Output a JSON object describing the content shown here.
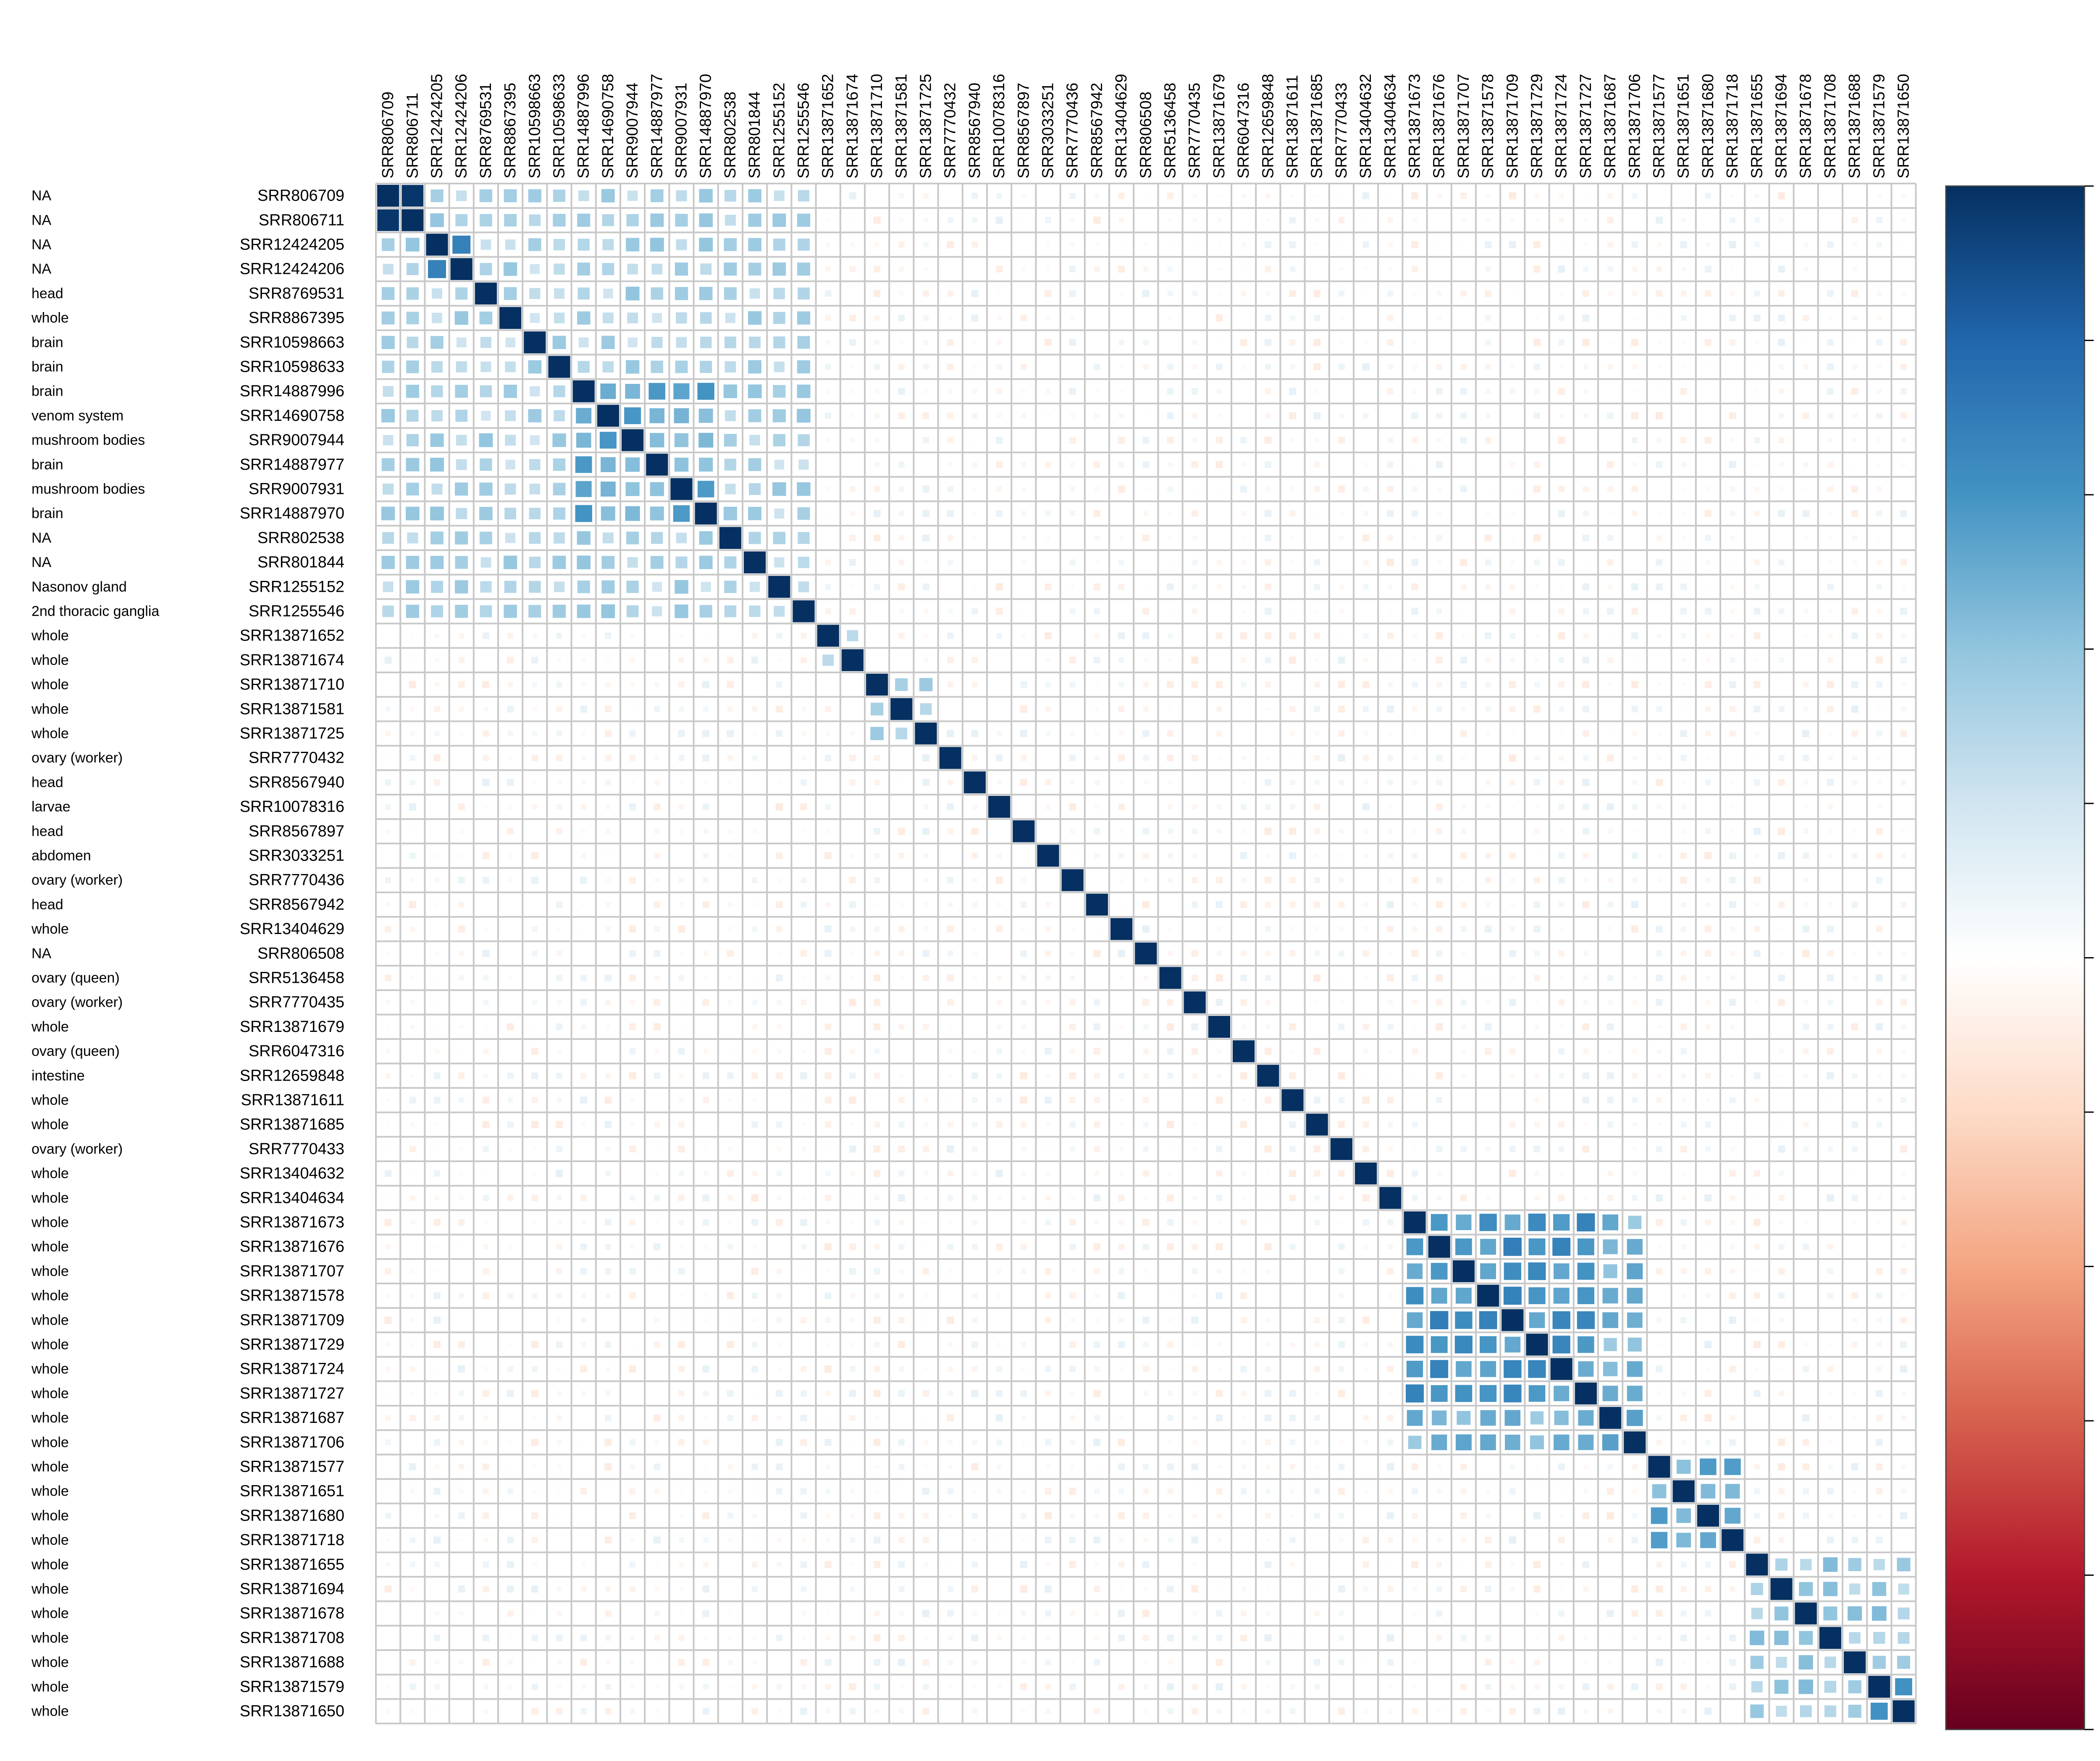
{
  "chart_data": {
    "type": "heatmap",
    "subtype": "correlation-matrix (corrplot, method=square)",
    "title": "",
    "xlabel": "",
    "ylabel": "",
    "samples": [
      "SRR806709",
      "SRR806711",
      "SRR12424205",
      "SRR12424206",
      "SRR8769531",
      "SRR8867395",
      "SRR10598663",
      "SRR10598633",
      "SRR14887996",
      "SRR14690758",
      "SRR9007944",
      "SRR14887977",
      "SRR9007931",
      "SRR14887970",
      "SRR802538",
      "SRR801844",
      "SRR1255152",
      "SRR1255546",
      "SRR13871652",
      "SRR13871674",
      "SRR13871710",
      "SRR13871581",
      "SRR13871725",
      "SRR7770432",
      "SRR8567940",
      "SRR10078316",
      "SRR8567897",
      "SRR3033251",
      "SRR7770436",
      "SRR8567942",
      "SRR13404629",
      "SRR806508",
      "SRR5136458",
      "SRR7770435",
      "SRR13871679",
      "SRR6047316",
      "SRR12659848",
      "SRR13871611",
      "SRR13871685",
      "SRR7770433",
      "SRR13404632",
      "SRR13404634",
      "SRR13871673",
      "SRR13871676",
      "SRR13871707",
      "SRR13871578",
      "SRR13871709",
      "SRR13871729",
      "SRR13871724",
      "SRR13871727",
      "SRR13871687",
      "SRR13871706",
      "SRR13871577",
      "SRR13871651",
      "SRR13871680",
      "SRR13871718",
      "SRR13871655",
      "SRR13871694",
      "SRR13871678",
      "SRR13871708",
      "SRR13871688",
      "SRR13871579",
      "SRR13871650"
    ],
    "tissues": [
      "NA",
      "NA",
      "NA",
      "NA",
      "head",
      "whole",
      "brain",
      "brain",
      "brain",
      "venom system",
      "mushroom bodies",
      "brain",
      "mushroom bodies",
      "brain",
      "NA",
      "NA",
      "Nasonov gland",
      "2nd thoracic ganglia",
      "whole",
      "whole",
      "whole",
      "whole",
      "whole",
      "ovary (worker)",
      "head",
      "larvae",
      "head",
      "abdomen",
      "ovary (worker)",
      "head",
      "whole",
      "NA",
      "ovary (queen)",
      "ovary (worker)",
      "whole",
      "ovary (queen)",
      "intestine",
      "whole",
      "whole",
      "ovary (worker)",
      "whole",
      "whole",
      "whole",
      "whole",
      "whole",
      "whole",
      "whole",
      "whole",
      "whole",
      "whole",
      "whole",
      "whole",
      "whole",
      "whole",
      "whole",
      "whole",
      "whole",
      "whole",
      "whole",
      "whole",
      "whole",
      "whole",
      "whole"
    ],
    "blocks": [
      {
        "members": [
          0,
          18
        ],
        "base": 0.3
      },
      {
        "members": [
          0,
          2
        ],
        "base": 0.95
      },
      {
        "members": [
          2,
          4
        ],
        "base": 0.7
      },
      {
        "members": [
          8,
          14
        ],
        "base": 0.5
      },
      {
        "members": [
          18,
          20
        ],
        "base": 0.35
      },
      {
        "members": [
          20,
          23
        ],
        "base": 0.3
      },
      {
        "members": [
          42,
          52
        ],
        "base": 0.45
      },
      {
        "members": [
          42,
          50
        ],
        "base": 0.6
      },
      {
        "members": [
          52,
          56
        ],
        "base": 0.5
      },
      {
        "members": [
          56,
          63
        ],
        "base": 0.35
      },
      {
        "members": [
          61,
          63
        ],
        "base": 0.65
      }
    ],
    "colorbar": {
      "ticks": [
        "1",
        "0.8",
        "0.6",
        "0.4",
        "0.2",
        "0",
        "−0.2",
        "−0.4",
        "−0.6",
        "−0.8",
        "−1"
      ],
      "values": [
        1,
        0.8,
        0.6,
        0.4,
        0.2,
        0,
        -0.2,
        -0.4,
        -0.6,
        -0.8,
        -1
      ],
      "palette": [
        "#67001F",
        "#B2182B",
        "#D6604D",
        "#F4A582",
        "#FDDBC7",
        "#FFFFFF",
        "#D1E5F0",
        "#92C5DE",
        "#4393C3",
        "#2166AC",
        "#053061"
      ]
    },
    "ylim": [
      -1,
      1
    ],
    "grid": true,
    "legend_position": "right",
    "diagonal_value": 1
  }
}
